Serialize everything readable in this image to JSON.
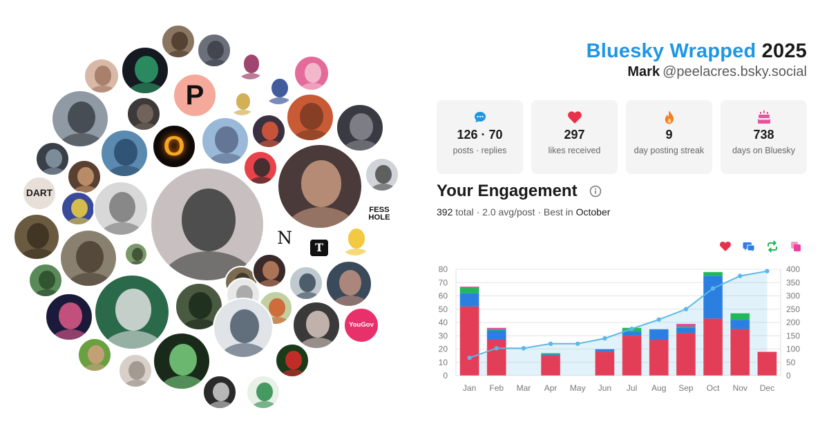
{
  "header": {
    "brand": "Bluesky Wrapped",
    "year": "2025",
    "user_name": "Mark",
    "user_handle": "@peelacres.bsky.social"
  },
  "stats": [
    {
      "value": "126 · 70",
      "label": "posts · replies",
      "icon": "chat-bubble-icon",
      "color": "#1e96e6"
    },
    {
      "value": "297",
      "label": "likes received",
      "icon": "heart-icon",
      "color": "#e8314a"
    },
    {
      "value": "9",
      "label": "day posting streak",
      "icon": "flame-icon",
      "color": "#f57c1f"
    },
    {
      "value": "738",
      "label": "days on Bluesky",
      "icon": "cake-icon",
      "color": "#ec4f9c"
    }
  ],
  "engagement": {
    "title": "Your Engagement",
    "total": "392",
    "total_label": "total",
    "avg": "2.0 avg/post",
    "best_prefix": "Best in",
    "best_month": "October"
  },
  "legend": [
    {
      "icon": "heart-icon",
      "color": "#e8314a"
    },
    {
      "icon": "replies-icon",
      "color": "#2b7fe0"
    },
    {
      "icon": "repost-icon",
      "color": "#20b85a"
    },
    {
      "icon": "quote-icon",
      "color": "#ec3e9c"
    }
  ],
  "avatars": [
    {
      "label": "",
      "bg": "#8a7560",
      "fg": "#4b3a2c"
    },
    {
      "label": "",
      "bg": "#6a6f7a",
      "fg": "#3c3f48"
    },
    {
      "label": "",
      "bg": "#d8b9a8",
      "fg": "#a07560"
    },
    {
      "label": "",
      "bg": "#151a20",
      "fg": "#2e9e6a"
    },
    {
      "label": "",
      "bg": "#ffffff",
      "fg": "#8e2456"
    },
    {
      "label": "",
      "bg": "#ffffff",
      "fg": "#1e3f8a"
    },
    {
      "label": "",
      "bg": "#e46a9a",
      "fg": "#f4c4d4"
    },
    {
      "label": "",
      "bg": "#3d3a3a",
      "fg": "#7a6a60"
    },
    {
      "label": "",
      "bg": "#8f9aa5",
      "fg": "#3a3f45"
    },
    {
      "label": "P",
      "bg": "#f4a99a",
      "fg": "#111111"
    },
    {
      "label": "",
      "bg": "#ffffff",
      "fg": "#c9a23a"
    },
    {
      "label": "",
      "bg": "#c85a36",
      "fg": "#7a3a22"
    },
    {
      "label": "",
      "bg": "#3a3a42",
      "fg": "#8a8a92"
    },
    {
      "label": "",
      "bg": "#5a8ab0",
      "fg": "#2a4a6a"
    },
    {
      "label": "O",
      "bg": "#0e0a08",
      "fg": "#f5a623"
    },
    {
      "label": "",
      "bg": "#9ab8d8",
      "fg": "#5a6a8a"
    },
    {
      "label": "",
      "bg": "#3a3040",
      "fg": "#e05a3a"
    },
    {
      "label": "",
      "bg": "#e8424a",
      "fg": "#2a2a2a"
    },
    {
      "label": "",
      "bg": "#4a3a3a",
      "fg": "#c89a80"
    },
    {
      "label": "",
      "bg": "#3a4048",
      "fg": "#8a9aa8"
    },
    {
      "label": "",
      "bg": "#5a4030",
      "fg": "#c89a70"
    },
    {
      "label": "",
      "bg": "#d0d4d8",
      "fg": "#4a4a4a"
    },
    {
      "label": "DART",
      "bg": "#e8e0d8",
      "fg": "#1a1a1a"
    },
    {
      "label": "",
      "bg": "#3a4a9a",
      "fg": "#f0d040"
    },
    {
      "label": "",
      "bg": "#d8d8d8",
      "fg": "#7a7a7a"
    },
    {
      "label": "",
      "bg": "#6a5a40",
      "fg": "#3a3020"
    },
    {
      "label": "FESS HOLE",
      "bg": "#ffffff",
      "fg": "#111111"
    },
    {
      "label": "",
      "bg": "#c8c0c0",
      "fg": "#3a3a3a"
    },
    {
      "label": "",
      "bg": "#8a8070",
      "fg": "#4a4030"
    },
    {
      "label": "",
      "bg": "#7a9a6a",
      "fg": "#3a4a30"
    },
    {
      "label": "N",
      "bg": "#ffffff",
      "fg": "#111111"
    },
    {
      "label": "T",
      "bg": "#ffffff",
      "fg": "#111111"
    },
    {
      "label": "",
      "bg": "#ffffff",
      "fg": "#f0c020"
    },
    {
      "label": "",
      "bg": "#5a8a5a",
      "fg": "#2a4a2a"
    },
    {
      "label": "",
      "bg": "#2a6a4a",
      "fg": "#e0e0e0"
    },
    {
      "label": "",
      "bg": "#7a6a50",
      "fg": "#3a3020"
    },
    {
      "label": "",
      "bg": "#3a2a2a",
      "fg": "#c08060"
    },
    {
      "label": "",
      "bg": "#c0c8d0",
      "fg": "#3a4a5a"
    },
    {
      "label": "",
      "bg": "#3a4a5a",
      "fg": "#c09080"
    },
    {
      "label": "",
      "bg": "#1a1a3a",
      "fg": "#e05a8a"
    },
    {
      "label": "",
      "bg": "#4a5a40",
      "fg": "#1a2a1a"
    },
    {
      "label": "",
      "bg": "#e8e8e8",
      "fg": "#a0a0a0"
    },
    {
      "label": "",
      "bg": "#c0d0a0",
      "fg": "#d05a2a"
    },
    {
      "label": "",
      "bg": "#e0e4e8",
      "fg": "#4a5a6a"
    },
    {
      "label": "",
      "bg": "#3a3a3a",
      "fg": "#d8c8c0"
    },
    {
      "label": "YouGov",
      "bg": "#e8306a",
      "fg": "#ffffff"
    },
    {
      "label": "",
      "bg": "#6aa040",
      "fg": "#d0a080"
    },
    {
      "label": "",
      "bg": "#d8d0c8",
      "fg": "#9a9088"
    },
    {
      "label": "",
      "bg": "#1a2a1a",
      "fg": "#7ad080"
    },
    {
      "label": "",
      "bg": "#1a3a1a",
      "fg": "#e02a2a"
    },
    {
      "label": "",
      "bg": "#2a2a2a",
      "fg": "#d0d0d0"
    },
    {
      "label": "",
      "bg": "#e8f0e8",
      "fg": "#2a8a4a"
    },
    {
      "label": "",
      "bg": "#4a5a6a",
      "fg": "#c09070"
    },
    {
      "label": "",
      "bg": "#f0b060",
      "fg": "#7a4a2a"
    }
  ],
  "chart_data": {
    "type": "bar",
    "stacked": true,
    "categories": [
      "Jan",
      "Feb",
      "Mar",
      "Apr",
      "May",
      "Jun",
      "Jul",
      "Aug",
      "Sep",
      "Oct",
      "Nov",
      "Dec"
    ],
    "series": [
      {
        "color": "#e23e57",
        "values": [
          52,
          27,
          0,
          15,
          0,
          18,
          30,
          27,
          32,
          43,
          35,
          18
        ]
      },
      {
        "color": "#2b7fe0",
        "values": [
          10,
          7,
          0,
          1,
          0,
          2,
          3,
          8,
          4,
          32,
          7,
          0
        ]
      },
      {
        "color": "#20b85a",
        "values": [
          4,
          1,
          0,
          1,
          0,
          0,
          3,
          0,
          1,
          3,
          5,
          0
        ]
      },
      {
        "color": "#ec3e9c",
        "values": [
          1,
          1,
          0,
          0,
          0,
          0,
          0,
          0,
          2,
          0,
          0,
          0
        ]
      }
    ],
    "cumulative": {
      "color": "#5bb8e8",
      "values": [
        67,
        103,
        103,
        120,
        120,
        140,
        176,
        211,
        250,
        328,
        375,
        393
      ]
    },
    "ylim": [
      0,
      80
    ],
    "y_ticks": [
      0,
      10,
      20,
      30,
      40,
      50,
      60,
      70,
      80
    ],
    "y2lim": [
      0,
      400
    ],
    "y2_ticks": [
      0,
      50,
      100,
      150,
      200,
      250,
      300,
      350,
      400
    ],
    "grid": true
  }
}
